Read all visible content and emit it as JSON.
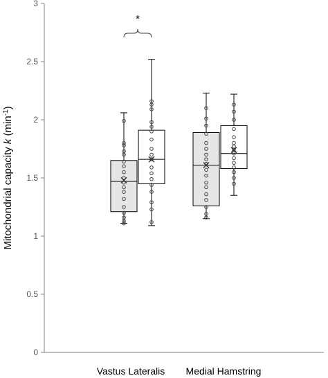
{
  "chart_data": {
    "type": "box",
    "ylabel": "Mitochondrial capacity k (min⁻¹)",
    "ylabel_parts": {
      "prefix": "Mitochondrial capacity ",
      "italic": "k",
      "unit": " (min",
      "sup": "-1",
      "close": ")"
    },
    "ylim": [
      0,
      3
    ],
    "yticks": [
      0,
      0.5,
      1,
      1.5,
      2,
      2.5,
      3
    ],
    "ytick_labels": [
      "0",
      "0.5",
      "1",
      "1.5",
      "2",
      "2.5",
      "3"
    ],
    "grid": false,
    "categories": [
      "Vastus Lateralis",
      "Medial Hamstring"
    ],
    "boxes": [
      {
        "group": 0,
        "fill": "#e6e6e6",
        "min": 1.11,
        "q1": 1.21,
        "median": 1.47,
        "q3": 1.65,
        "max": 2.06,
        "mean": 1.48,
        "points": [
          1.99,
          1.8,
          1.78,
          1.73,
          1.7,
          1.64,
          1.6,
          1.55,
          1.5,
          1.46,
          1.42,
          1.38,
          1.32,
          1.25,
          1.2,
          1.16,
          1.13,
          1.11
        ]
      },
      {
        "group": 0,
        "fill": "#ffffff",
        "min": 1.09,
        "q1": 1.45,
        "median": 1.66,
        "q3": 1.91,
        "max": 2.52,
        "mean": 1.66,
        "points": [
          2.16,
          2.13,
          2.09,
          1.98,
          1.94,
          1.9,
          1.83,
          1.75,
          1.7,
          1.66,
          1.59,
          1.54,
          1.49,
          1.44,
          1.38,
          1.29,
          1.23,
          1.12
        ]
      },
      {
        "group": 1,
        "fill": "#e6e6e6",
        "min": 1.15,
        "q1": 1.26,
        "median": 1.61,
        "q3": 1.89,
        "max": 2.23,
        "mean": 1.61,
        "points": [
          2.1,
          2.01,
          1.95,
          1.88,
          1.8,
          1.75,
          1.7,
          1.66,
          1.62,
          1.57,
          1.52,
          1.46,
          1.42,
          1.36,
          1.31,
          1.25,
          1.19,
          1.16
        ]
      },
      {
        "group": 1,
        "fill": "#ffffff",
        "min": 1.35,
        "q1": 1.58,
        "median": 1.71,
        "q3": 1.95,
        "max": 2.22,
        "mean": 1.74,
        "points": [
          2.13,
          2.07,
          2.0,
          1.92,
          1.85,
          1.8,
          1.77,
          1.74,
          1.71,
          1.67,
          1.63,
          1.59,
          1.55,
          1.5,
          1.45
        ]
      }
    ],
    "annotations": [
      {
        "text": "*",
        "between_boxes": [
          0,
          1
        ]
      }
    ],
    "colors": {
      "axis": "#808080",
      "box_stroke": "#000000",
      "point_stroke": "#404040",
      "gray_fill": "#e6e6e6",
      "white_fill": "#ffffff"
    }
  }
}
